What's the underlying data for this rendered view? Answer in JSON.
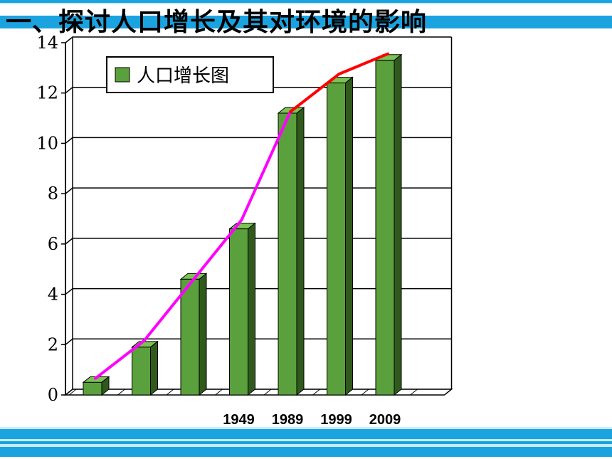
{
  "slide": {
    "title": "一、探讨人口增长及其对环境的影响",
    "colors": {
      "stripe": "#1ba3e0",
      "stripe_light": "#c8ecf8"
    }
  },
  "chart_data": {
    "type": "bar",
    "style": "3d-column",
    "legend": {
      "label": "人口增长图",
      "position": "top-left"
    },
    "categories": [
      "",
      "",
      "",
      "1949",
      "1989",
      "1999",
      "2009",
      ""
    ],
    "series": [
      {
        "name": "人口增长图",
        "color": "#5aa03c",
        "values": [
          0.5,
          1.9,
          4.6,
          6.6,
          11.2,
          12.4,
          13.3,
          null
        ]
      }
    ],
    "trend_lines": [
      {
        "color": "#ff00ff",
        "points": [
          [
            0,
            0.6
          ],
          [
            1,
            2.1
          ],
          [
            2,
            4.5
          ],
          [
            3,
            6.9
          ],
          [
            4,
            11.2
          ]
        ]
      },
      {
        "color": "#ff0000",
        "points": [
          [
            4,
            11.2
          ],
          [
            5,
            12.7
          ],
          [
            6,
            13.5
          ]
        ]
      }
    ],
    "ylim": [
      0,
      14
    ],
    "yticks": [
      0,
      2,
      4,
      6,
      8,
      10,
      12,
      14
    ],
    "grid": true,
    "xlabel": "",
    "ylabel": ""
  }
}
